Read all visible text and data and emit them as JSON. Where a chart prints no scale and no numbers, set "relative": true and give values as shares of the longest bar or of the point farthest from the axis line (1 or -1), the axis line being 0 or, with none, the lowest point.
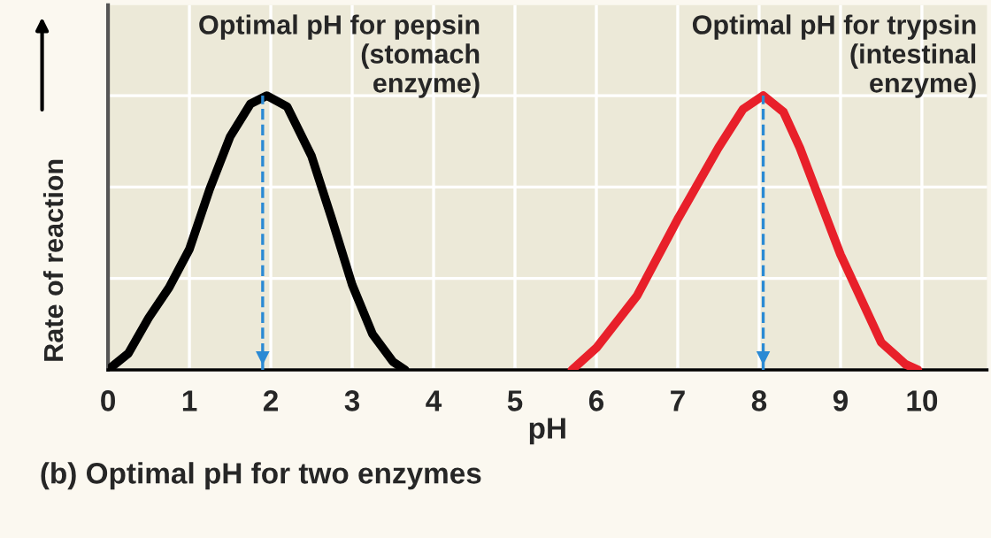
{
  "chart_data": {
    "type": "line",
    "relative": true,
    "xlabel": "pH",
    "ylabel": "Rate of reaction",
    "xlim": [
      0,
      10.8
    ],
    "xticks": [
      0,
      1,
      2,
      3,
      4,
      5,
      6,
      7,
      8,
      9,
      10
    ],
    "grid": true,
    "marker": "none",
    "line_style": "solid",
    "series": [
      {
        "color": "#000000",
        "x": [
          0,
          0.25,
          0.5,
          0.75,
          1,
          1.25,
          1.5,
          1.75,
          1.95,
          2.2,
          2.5,
          2.75,
          3,
          3.25,
          3.5,
          3.65
        ],
        "values": [
          0,
          0.06,
          0.19,
          0.3,
          0.44,
          0.66,
          0.85,
          0.97,
          1,
          0.96,
          0.78,
          0.55,
          0.31,
          0.13,
          0.03,
          0
        ]
      },
      {
        "color": "#e8202a",
        "x": [
          5.7,
          6,
          6.5,
          7,
          7.5,
          7.8,
          8.05,
          8.3,
          8.5,
          9,
          9.5,
          9.8,
          9.95
        ],
        "values": [
          0,
          0.08,
          0.27,
          0.55,
          0.81,
          0.95,
          1,
          0.94,
          0.81,
          0.42,
          0.1,
          0.02,
          0
        ]
      }
    ],
    "ref_lines": [
      {
        "axis": "x",
        "value": 1.9,
        "color": "#2a8ad4",
        "line_style": "dashed"
      },
      {
        "axis": "x",
        "value": 8.05,
        "color": "#2a8ad4",
        "line_style": "dashed"
      }
    ],
    "annotations": [
      {
        "text": "Optimal pH for pepsin\n(stomach\nenzyme)",
        "x": 1.95,
        "y": 1
      },
      {
        "text": "Optimal pH for trypsin\n(intestinal\nenzyme)",
        "x": 8.05,
        "y": 1
      },
      "(b) Optimal pH for two enzymes"
    ]
  }
}
